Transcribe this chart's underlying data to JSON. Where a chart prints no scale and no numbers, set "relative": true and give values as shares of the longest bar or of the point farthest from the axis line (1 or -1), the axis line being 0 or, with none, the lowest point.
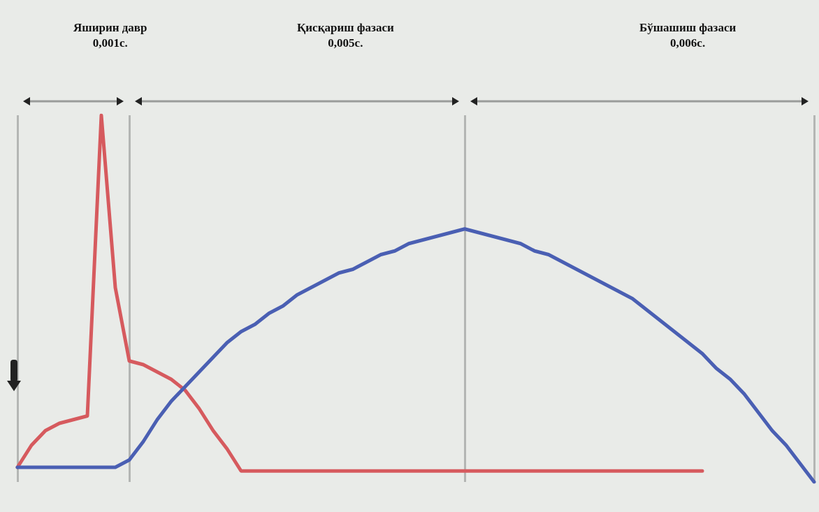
{
  "chart_data": {
    "type": "line",
    "relative": true,
    "marker": "none",
    "categories": [
      null,
      null,
      null,
      null,
      null,
      null,
      null,
      null,
      null,
      null,
      null,
      null,
      null,
      null,
      null,
      null,
      null,
      null,
      null,
      null,
      null,
      null,
      null,
      null,
      null,
      null,
      null,
      null,
      null,
      null,
      null,
      null,
      null,
      null,
      null,
      null,
      null,
      null,
      null,
      null,
      null,
      null,
      null,
      null,
      null,
      null,
      null,
      null,
      null,
      null,
      null,
      null,
      null,
      null,
      null,
      null,
      null,
      null
    ],
    "series": [
      {
        "color": "#d65a5e",
        "values": [
          0.04,
          0.1,
          0.14,
          0.16,
          0.17,
          0.18,
          1.0,
          0.53,
          0.33,
          0.32,
          0.3,
          0.28,
          0.25,
          0.2,
          0.14,
          0.09,
          0.03,
          0.03,
          0.03,
          0.03,
          0.03,
          0.03,
          0.03,
          0.03,
          0.03,
          0.03,
          0.03,
          0.03,
          0.03,
          0.03,
          0.03,
          0.03,
          0.03,
          0.03,
          0.03,
          0.03,
          0.03,
          0.03,
          0.03,
          0.03,
          0.03,
          0.03,
          0.03,
          0.03,
          0.03,
          0.03,
          0.03,
          0.03,
          0.03,
          0.03,
          null,
          null,
          null,
          null,
          null,
          null,
          null,
          null
        ]
      },
      {
        "color": "#4a5fb3",
        "values": [
          0.04,
          0.04,
          0.04,
          0.04,
          0.04,
          0.04,
          0.04,
          0.04,
          0.06,
          0.11,
          0.17,
          0.22,
          0.26,
          0.3,
          0.34,
          0.38,
          0.41,
          0.43,
          0.46,
          0.48,
          0.51,
          0.53,
          0.55,
          0.57,
          0.58,
          0.6,
          0.62,
          0.63,
          0.65,
          0.66,
          0.67,
          0.68,
          0.69,
          0.68,
          0.67,
          0.66,
          0.65,
          0.63,
          0.62,
          0.6,
          0.58,
          0.56,
          0.54,
          0.52,
          0.5,
          0.47,
          0.44,
          0.41,
          0.38,
          0.35,
          0.31,
          0.28,
          0.24,
          0.19,
          0.14,
          0.1,
          0.05,
          0.0
        ]
      }
    ],
    "grid": "x",
    "annotations": [
      "Яширин давр\n0,001с.",
      "Қисқариш фазаси\n0,005с.",
      "Бўшашиш фазаси\n0,006с."
    ]
  }
}
